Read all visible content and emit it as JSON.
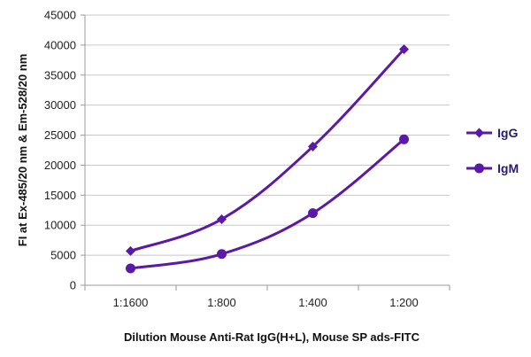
{
  "chart_data": {
    "type": "line",
    "title": "",
    "xlabel": "Dilution Mouse Anti-Rat IgG(H+L), Mouse SP ads-FITC",
    "ylabel": "FI at Ex-485/20 nm & Em-528/20 nm",
    "categories": [
      "1:1600",
      "1:800",
      "1:400",
      "1:200"
    ],
    "ylim": [
      0,
      45000
    ],
    "yticks": [
      0,
      5000,
      10000,
      15000,
      20000,
      25000,
      30000,
      35000,
      40000,
      45000
    ],
    "grid": "horizontal",
    "legend": "right",
    "colors": {
      "line": "#5b19a8",
      "grid": "#c8c8c8",
      "axis": "#9a9a9a"
    },
    "series": [
      {
        "name": "IgG",
        "marker": "diamond",
        "values": [
          5700,
          11000,
          23100,
          39300
        ]
      },
      {
        "name": "IgM",
        "marker": "circle",
        "values": [
          2800,
          5200,
          12000,
          24300
        ]
      }
    ]
  }
}
